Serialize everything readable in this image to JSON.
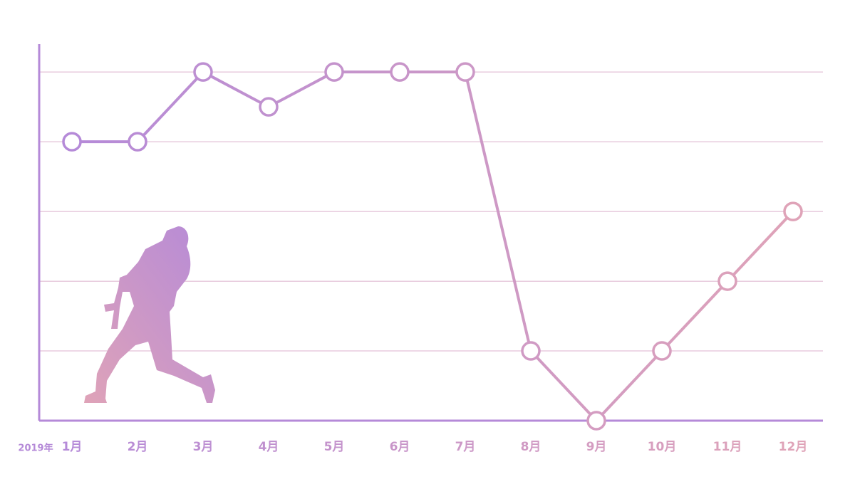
{
  "chart_data": {
    "type": "line",
    "year_label": "2019年",
    "categories": [
      "1月",
      "2月",
      "3月",
      "4月",
      "5月",
      "6月",
      "7月",
      "8月",
      "9月",
      "10月",
      "11月",
      "12月"
    ],
    "values": [
      4,
      4,
      5,
      4.5,
      5,
      5,
      5,
      1,
      0,
      1,
      2,
      3
    ],
    "color_start": "#b58ad8",
    "color_end": "#dfa3b8",
    "grid_color": "#dcb0cc",
    "ylim": [
      0,
      5.4
    ],
    "yticks": [
      0,
      1,
      2,
      3,
      4,
      5
    ],
    "grid": true
  }
}
